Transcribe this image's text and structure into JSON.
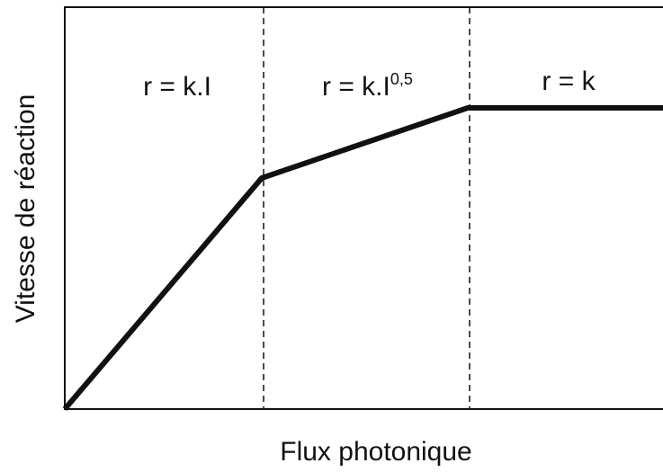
{
  "axes": {
    "x_label": "Flux photonique",
    "y_label": "Vitesse de réaction"
  },
  "regions": [
    {
      "label": "r = k.I"
    },
    {
      "label": "r = k.I",
      "exponent": "0,5"
    },
    {
      "label": "r = k"
    }
  ]
}
